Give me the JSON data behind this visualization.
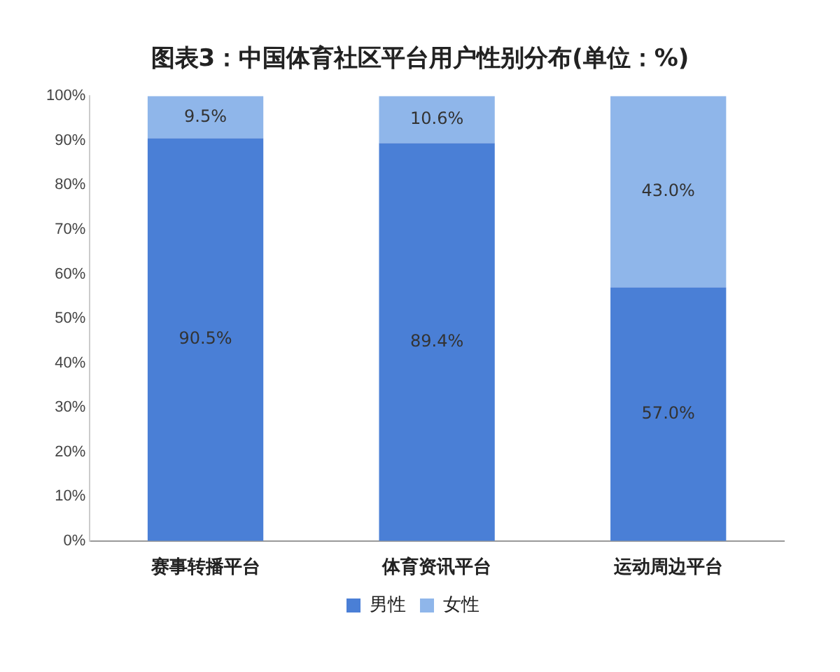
{
  "chart_data": {
    "type": "bar",
    "title": "图表3：中国体育社区平台用户性别分布(单位：%)",
    "categories": [
      "赛事转播平台",
      "体育资讯平台",
      "运动周边平台"
    ],
    "stacked": true,
    "series": [
      {
        "name": "男性",
        "color": "#4a7fd6",
        "values": [
          90.5,
          89.4,
          57.0
        ],
        "value_labels": [
          "90.5%",
          "89.4%",
          "57.0%"
        ]
      },
      {
        "name": "女性",
        "color": "#8fb6ea",
        "values": [
          9.5,
          10.6,
          43.0
        ],
        "value_labels": [
          "9.5%",
          "10.6%",
          "43.0%"
        ]
      }
    ],
    "ylim": [
      0,
      100
    ],
    "yticks": [
      {
        "value": 0,
        "label": "0%"
      },
      {
        "value": 10,
        "label": "10%"
      },
      {
        "value": 20,
        "label": "20%"
      },
      {
        "value": 30,
        "label": "30%"
      },
      {
        "value": 40,
        "label": "40%"
      },
      {
        "value": 50,
        "label": "50%"
      },
      {
        "value": 60,
        "label": "60%"
      },
      {
        "value": 70,
        "label": "70%"
      },
      {
        "value": 80,
        "label": "80%"
      },
      {
        "value": 90,
        "label": "90%"
      },
      {
        "value": 100,
        "label": "100%"
      }
    ],
    "grid": false,
    "legend": "bottom"
  }
}
